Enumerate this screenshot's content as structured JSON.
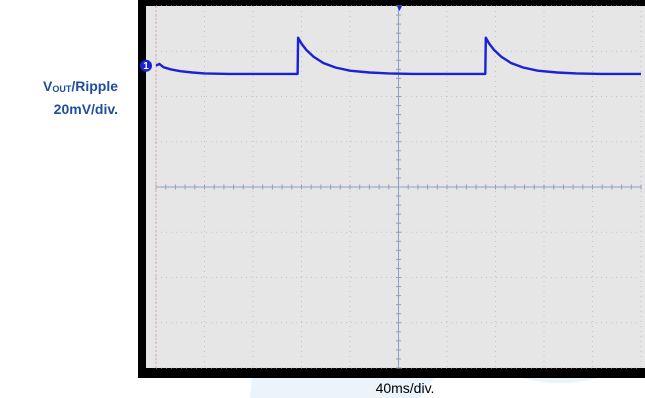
{
  "chart_data": {
    "type": "line",
    "xlabel": "40ms/div.",
    "ylabel_prefix": "V",
    "ylabel_sub": "OUT",
    "ylabel_suffix": "/Ripple",
    "ylabel_scale": "20mV/div.",
    "channel_marker": "1",
    "grid": true,
    "xlim": [
      0,
      10
    ],
    "ylim": [
      -4,
      4
    ],
    "trace_color": "#1a22d6",
    "series": [
      {
        "x": [
          0,
          0.07,
          0.15,
          0.3,
          0.5,
          0.75,
          1.0,
          1.5,
          2.0,
          2.5,
          2.92,
          2.93,
          3.0,
          3.1,
          3.25,
          3.45,
          3.7,
          4.0,
          4.4,
          4.8,
          5.3,
          5.8,
          6.3,
          6.79,
          6.8,
          6.87,
          6.97,
          7.12,
          7.32,
          7.57,
          7.87,
          8.27,
          8.67,
          9.17,
          9.67,
          10.0
        ],
        "y": [
          2.68,
          2.72,
          2.65,
          2.6,
          2.56,
          2.53,
          2.51,
          2.5,
          2.5,
          2.5,
          2.5,
          3.3,
          3.17,
          3.03,
          2.88,
          2.74,
          2.64,
          2.57,
          2.53,
          2.51,
          2.5,
          2.5,
          2.5,
          2.5,
          3.3,
          3.17,
          3.03,
          2.88,
          2.74,
          2.64,
          2.57,
          2.53,
          2.51,
          2.5,
          2.5,
          2.5
        ]
      }
    ]
  }
}
